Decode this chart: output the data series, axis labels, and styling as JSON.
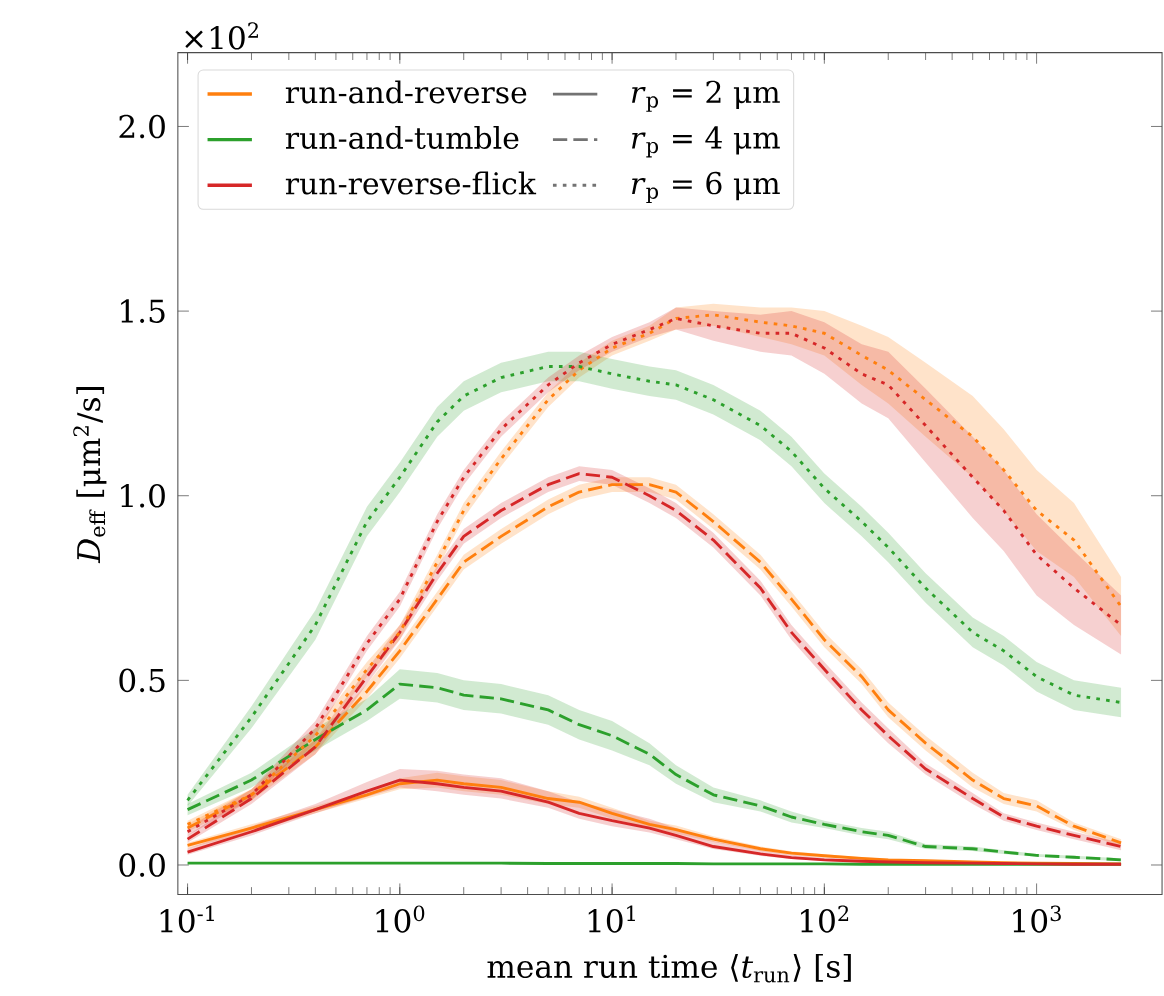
{
  "chart_data": {
    "type": "line",
    "xlabel": "mean run time ⟨*t*$_{run}$⟩ [s]",
    "ylabel": "*D*$_{eff}$ [μm$^{2}$/s]",
    "annotations": [
      "×10$^{2}$",
      "*r*$_{p}$ = 2 μm",
      "*r*$_{p}$ = 4 μm",
      "*r*$_{p}$ = 6 μm"
    ],
    "log": "x",
    "grid": false,
    "legend": "top left",
    "xlim": [
      0.09,
      3900
    ],
    "ylim": [
      -0.08,
      2.2
    ],
    "xticks": [
      {
        "value": 0.1,
        "label": "10$^{-1}$"
      },
      {
        "value": 1,
        "label": "10$^{0}$"
      },
      {
        "value": 10,
        "label": "10$^{1}$"
      },
      {
        "value": 100,
        "label": "10$^{2}$"
      },
      {
        "value": 1000,
        "label": "10$^{3}$"
      }
    ],
    "yticks": [
      {
        "value": 0,
        "label": "0.0"
      },
      {
        "value": 0.5,
        "label": "0.5"
      },
      {
        "value": 1,
        "label": "1.0"
      },
      {
        "value": 1.5,
        "label": "1.5"
      },
      {
        "value": 2,
        "label": "2.0"
      }
    ],
    "x": [
      0.1,
      0.2,
      0.4,
      0.7,
      1,
      1.5,
      2,
      3,
      5,
      7,
      10,
      15,
      20,
      30,
      50,
      70,
      100,
      150,
      200,
      300,
      500,
      700,
      1000,
      1500,
      2500
    ],
    "series": [
      {
        "name": "run-and-reverse",
        "color": "#ff7f0e",
        "line_style": "solid",
        "values": [
          0.053,
          0.1,
          0.15,
          0.19,
          0.22,
          0.23,
          0.22,
          0.21,
          0.18,
          0.17,
          0.14,
          0.11,
          0.096,
          0.07,
          0.044,
          0.032,
          0.025,
          0.018,
          0.014,
          0.012,
          0.008,
          0.006,
          0.005,
          0.004,
          0.003
        ],
        "lower": [
          0.045,
          0.09,
          0.14,
          0.18,
          0.205,
          0.21,
          0.2,
          0.19,
          0.165,
          0.155,
          0.125,
          0.1,
          0.085,
          0.062,
          0.038,
          0.027,
          0.021,
          0.015,
          0.011,
          0.009,
          0.006,
          0.004,
          0.003,
          0.002,
          0.001
        ],
        "upper": [
          0.06,
          0.11,
          0.16,
          0.2,
          0.235,
          0.25,
          0.24,
          0.23,
          0.2,
          0.185,
          0.155,
          0.12,
          0.107,
          0.078,
          0.05,
          0.037,
          0.029,
          0.021,
          0.017,
          0.015,
          0.01,
          0.008,
          0.007,
          0.006,
          0.005
        ]
      },
      {
        "name": "run-and-tumble",
        "color": "#2ca02c",
        "line_style": "solid",
        "values": [
          0.005,
          0.005,
          0.005,
          0.005,
          0.005,
          0.005,
          0.005,
          0.005,
          0.004,
          0.004,
          0.004,
          0.004,
          0.004,
          0.003,
          0.003,
          0.003,
          0.003,
          0.002,
          0.002,
          0.002,
          0.002,
          0.002,
          0.002,
          0.002,
          0.002
        ]
      },
      {
        "name": "run-reverse-flick",
        "color": "#d62728",
        "line_style": "solid",
        "values": [
          0.035,
          0.09,
          0.15,
          0.2,
          0.23,
          0.22,
          0.21,
          0.2,
          0.17,
          0.14,
          0.12,
          0.1,
          0.08,
          0.05,
          0.03,
          0.02,
          0.014,
          0.01,
          0.008,
          0.006,
          0.005,
          0.004,
          0.003,
          0.002,
          0.002
        ],
        "lower": [
          0.028,
          0.08,
          0.14,
          0.185,
          0.21,
          0.2,
          0.19,
          0.18,
          0.155,
          0.125,
          0.105,
          0.088,
          0.07,
          0.043,
          0.025,
          0.016,
          0.011,
          0.007,
          0.005,
          0.004,
          0.003,
          0.002,
          0.002,
          0.001,
          0.001
        ],
        "upper": [
          0.045,
          0.105,
          0.165,
          0.225,
          0.26,
          0.255,
          0.245,
          0.235,
          0.2,
          0.17,
          0.15,
          0.125,
          0.1,
          0.065,
          0.04,
          0.028,
          0.02,
          0.015,
          0.012,
          0.009,
          0.007,
          0.006,
          0.004,
          0.003,
          0.003
        ]
      },
      {
        "color": "#ff7f0e",
        "line_style": "dashed",
        "values": [
          0.1,
          0.19,
          0.32,
          0.47,
          0.58,
          0.72,
          0.82,
          0.89,
          0.97,
          1.01,
          1.03,
          1.03,
          1.01,
          0.93,
          0.82,
          0.72,
          0.61,
          0.51,
          0.42,
          0.33,
          0.23,
          0.18,
          0.16,
          0.105,
          0.06
        ],
        "lower": [
          0.09,
          0.175,
          0.3,
          0.45,
          0.56,
          0.7,
          0.8,
          0.87,
          0.95,
          0.99,
          1.01,
          1.01,
          0.99,
          0.91,
          0.8,
          0.7,
          0.59,
          0.49,
          0.4,
          0.31,
          0.21,
          0.165,
          0.145,
          0.095,
          0.05
        ],
        "upper": [
          0.11,
          0.205,
          0.34,
          0.49,
          0.6,
          0.74,
          0.84,
          0.91,
          0.99,
          1.03,
          1.05,
          1.05,
          1.03,
          0.95,
          0.84,
          0.74,
          0.63,
          0.53,
          0.44,
          0.35,
          0.25,
          0.195,
          0.175,
          0.115,
          0.07
        ]
      },
      {
        "color": "#2ca02c",
        "line_style": "dashed",
        "values": [
          0.15,
          0.23,
          0.34,
          0.42,
          0.49,
          0.48,
          0.46,
          0.45,
          0.42,
          0.38,
          0.35,
          0.3,
          0.245,
          0.19,
          0.16,
          0.13,
          0.11,
          0.09,
          0.08,
          0.05,
          0.044,
          0.035,
          0.026,
          0.021,
          0.014
        ],
        "lower": [
          0.135,
          0.21,
          0.31,
          0.39,
          0.45,
          0.44,
          0.42,
          0.41,
          0.38,
          0.34,
          0.31,
          0.27,
          0.22,
          0.17,
          0.145,
          0.115,
          0.1,
          0.08,
          0.07,
          0.043,
          0.038,
          0.03,
          0.022,
          0.017,
          0.01
        ],
        "upper": [
          0.165,
          0.25,
          0.37,
          0.45,
          0.53,
          0.52,
          0.5,
          0.49,
          0.46,
          0.42,
          0.39,
          0.33,
          0.27,
          0.21,
          0.175,
          0.145,
          0.12,
          0.1,
          0.09,
          0.057,
          0.05,
          0.04,
          0.03,
          0.025,
          0.018
        ]
      },
      {
        "color": "#d62728",
        "line_style": "dashed",
        "values": [
          0.07,
          0.18,
          0.32,
          0.51,
          0.63,
          0.79,
          0.89,
          0.96,
          1.03,
          1.06,
          1.05,
          1.0,
          0.96,
          0.88,
          0.75,
          0.63,
          0.53,
          0.42,
          0.35,
          0.26,
          0.18,
          0.13,
          0.105,
          0.08,
          0.05
        ],
        "lower": [
          0.06,
          0.165,
          0.3,
          0.49,
          0.61,
          0.77,
          0.87,
          0.94,
          1.01,
          1.04,
          1.03,
          0.98,
          0.94,
          0.86,
          0.73,
          0.61,
          0.51,
          0.4,
          0.33,
          0.245,
          0.165,
          0.12,
          0.095,
          0.07,
          0.04
        ],
        "upper": [
          0.08,
          0.195,
          0.34,
          0.53,
          0.65,
          0.81,
          0.91,
          0.98,
          1.05,
          1.08,
          1.07,
          1.02,
          0.98,
          0.9,
          0.77,
          0.65,
          0.55,
          0.44,
          0.37,
          0.275,
          0.195,
          0.14,
          0.115,
          0.09,
          0.06
        ]
      },
      {
        "color": "#ff7f0e",
        "line_style": "dotted",
        "values": [
          0.11,
          0.19,
          0.35,
          0.53,
          0.63,
          0.82,
          0.96,
          1.1,
          1.26,
          1.34,
          1.4,
          1.44,
          1.48,
          1.49,
          1.47,
          1.46,
          1.44,
          1.38,
          1.34,
          1.26,
          1.16,
          1.07,
          0.96,
          0.88,
          0.7
        ],
        "lower": [
          0.1,
          0.175,
          0.33,
          0.51,
          0.61,
          0.8,
          0.94,
          1.08,
          1.24,
          1.32,
          1.38,
          1.42,
          1.45,
          1.46,
          1.43,
          1.41,
          1.38,
          1.3,
          1.25,
          1.16,
          1.05,
          0.96,
          0.85,
          0.78,
          0.62
        ],
        "upper": [
          0.12,
          0.205,
          0.37,
          0.55,
          0.65,
          0.84,
          0.98,
          1.12,
          1.28,
          1.36,
          1.42,
          1.46,
          1.51,
          1.52,
          1.51,
          1.51,
          1.5,
          1.46,
          1.43,
          1.36,
          1.27,
          1.18,
          1.07,
          0.98,
          0.78
        ]
      },
      {
        "color": "#2ca02c",
        "line_style": "dotted",
        "values": [
          0.175,
          0.4,
          0.65,
          0.93,
          1.05,
          1.2,
          1.27,
          1.32,
          1.35,
          1.35,
          1.33,
          1.31,
          1.3,
          1.26,
          1.19,
          1.12,
          1.02,
          0.93,
          0.86,
          0.75,
          0.63,
          0.58,
          0.51,
          0.46,
          0.44
        ],
        "lower": [
          0.16,
          0.37,
          0.61,
          0.89,
          1.01,
          1.16,
          1.23,
          1.28,
          1.31,
          1.31,
          1.29,
          1.27,
          1.26,
          1.22,
          1.15,
          1.08,
          0.98,
          0.89,
          0.82,
          0.71,
          0.59,
          0.54,
          0.47,
          0.42,
          0.4
        ],
        "upper": [
          0.19,
          0.43,
          0.69,
          0.97,
          1.09,
          1.24,
          1.31,
          1.36,
          1.39,
          1.39,
          1.37,
          1.35,
          1.34,
          1.3,
          1.23,
          1.16,
          1.06,
          0.97,
          0.9,
          0.79,
          0.67,
          0.62,
          0.55,
          0.5,
          0.48
        ]
      },
      {
        "color": "#d62728",
        "line_style": "dotted",
        "values": [
          0.09,
          0.19,
          0.37,
          0.6,
          0.72,
          0.93,
          1.05,
          1.18,
          1.3,
          1.36,
          1.41,
          1.45,
          1.48,
          1.46,
          1.44,
          1.44,
          1.4,
          1.33,
          1.3,
          1.19,
          1.05,
          0.96,
          0.84,
          0.75,
          0.65
        ],
        "lower": [
          0.08,
          0.175,
          0.35,
          0.58,
          0.7,
          0.91,
          1.03,
          1.16,
          1.28,
          1.34,
          1.39,
          1.43,
          1.45,
          1.42,
          1.39,
          1.38,
          1.33,
          1.25,
          1.21,
          1.09,
          0.94,
          0.85,
          0.73,
          0.65,
          0.57
        ],
        "upper": [
          0.1,
          0.205,
          0.39,
          0.62,
          0.74,
          0.95,
          1.07,
          1.2,
          1.32,
          1.38,
          1.43,
          1.47,
          1.51,
          1.5,
          1.49,
          1.5,
          1.47,
          1.41,
          1.39,
          1.29,
          1.16,
          1.07,
          0.95,
          0.85,
          0.73
        ]
      }
    ]
  }
}
